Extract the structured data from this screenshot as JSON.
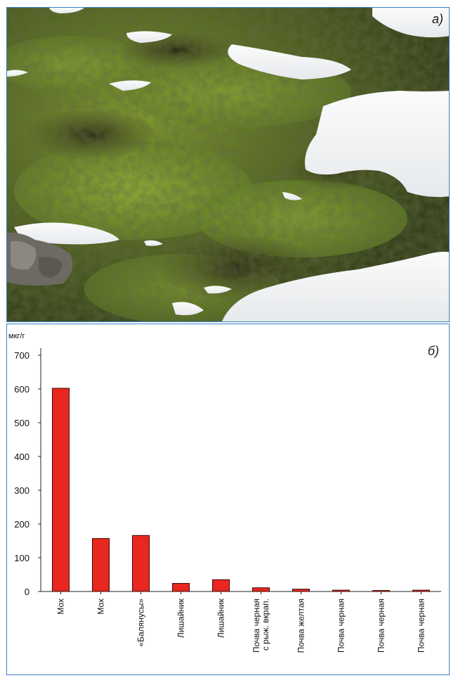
{
  "panels": {
    "photo_label": "а)",
    "chart_label": "б)"
  },
  "chart_data": {
    "type": "bar",
    "title": "",
    "xlabel": "",
    "ylabel": "мкг/г",
    "ylim": [
      0,
      700
    ],
    "yticks": [
      0,
      100,
      200,
      300,
      400,
      500,
      600,
      700
    ],
    "grid": false,
    "categories": [
      [
        "Мох"
      ],
      [
        "Мох"
      ],
      [
        "«Балянусы»"
      ],
      [
        "Лишайник"
      ],
      [
        "Лишайник"
      ],
      [
        "Почва черная",
        "с рыж. вкрап."
      ],
      [
        "Почва желтая"
      ],
      [
        "Почва черная"
      ],
      [
        "Почва черная"
      ],
      [
        "Почва черная"
      ]
    ],
    "values": [
      602,
      157,
      166,
      24,
      35,
      11,
      7,
      4,
      3,
      4
    ],
    "bar_color": "#e8281e",
    "bar_edge_color": "#3a0a08"
  }
}
